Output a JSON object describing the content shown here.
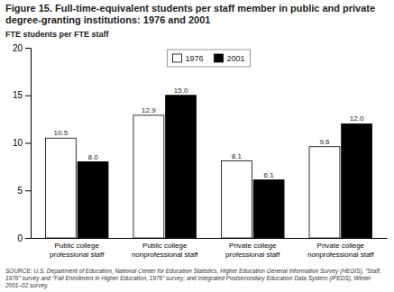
{
  "chart_data": {
    "type": "bar",
    "title": "Figure 15. Full-time-equivalent students per staff member in public and private degree-granting institutions: 1976 and 2001",
    "y_label": "FTE students per FTE staff",
    "categories": [
      "Public college\nprofessional staff",
      "Public college\nnonprofessional staff",
      "Private college\nprofessional staff",
      "Private college\nnonprofessional staff"
    ],
    "series": [
      {
        "name": "1976",
        "color": "#ffffff",
        "values": [
          10.5,
          12.9,
          8.1,
          9.6
        ]
      },
      {
        "name": "2001",
        "color": "#000000",
        "values": [
          8.0,
          15.0,
          6.1,
          12.0
        ],
        "value_labels": [
          "8.0",
          "15.0",
          "6.1",
          "12.0"
        ]
      }
    ],
    "ylim": [
      0,
      20
    ],
    "yticks": [
      0,
      5,
      10,
      15,
      20
    ],
    "grid": false,
    "legend": "top",
    "data_labels": true,
    "source": "SOURCE: U.S. Department of Education, National Center for Education Statistics, Higher Education General Information Survey\n(HEGIS), “Staff, 1976” survey and “Fall Enrollment in Higher Education, 1976” survey; and Integrated Postsecondary Education Data\nSystem (IPEDS), Winter 2001–02 survey."
  }
}
